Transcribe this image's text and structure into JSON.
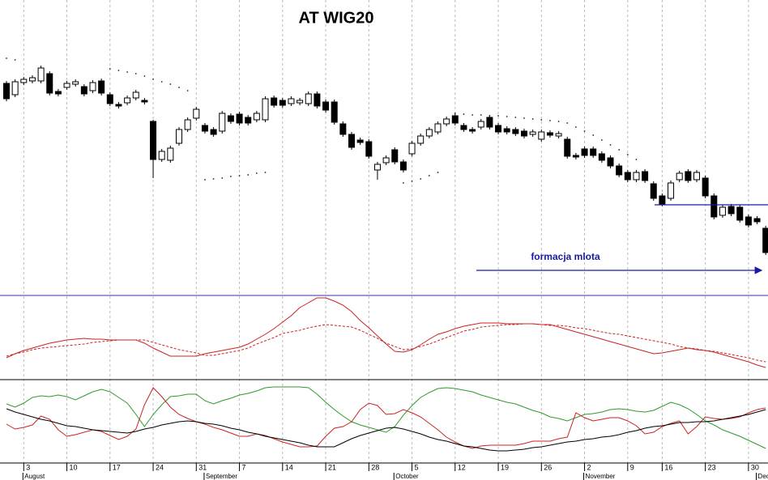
{
  "chart_data": [
    {
      "type": "candlestick",
      "title": "AT WIG20",
      "annotation": "formacja mlota",
      "ylim": [
        1770,
        2500
      ],
      "body_up_color": "#ffffff",
      "body_down_color": "#000000",
      "support_level": 1994,
      "support_color": "#1a1aa0",
      "open": [
        2294,
        2266,
        2296,
        2300,
        2300,
        2318,
        2274,
        2284,
        2292,
        2286,
        2276,
        2300,
        2266,
        2242,
        2246,
        2258,
        2252,
        2200,
        2106,
        2104,
        2146,
        2180,
        2208,
        2190,
        2180,
        2176,
        2214,
        2218,
        2210,
        2204,
        2204,
        2258,
        2252,
        2244,
        2246,
        2244,
        2268,
        2248,
        2248,
        2194,
        2168,
        2154,
        2150,
        2080,
        2098,
        2130,
        2100,
        2120,
        2146,
        2164,
        2174,
        2194,
        2214,
        2190,
        2180,
        2186,
        2210,
        2190,
        2182,
        2180,
        2176,
        2168,
        2156,
        2172,
        2164,
        2156,
        2116,
        2132,
        2132,
        2120,
        2110,
        2090,
        2074,
        2056,
        2076,
        2046,
        2016,
        2010,
        2056,
        2076,
        2056,
        2060,
        2016,
        1968,
        1990,
        1988,
        1964,
        1960,
        1936
      ],
      "high": [
        2300,
        2304,
        2310,
        2314,
        2338,
        2324,
        2280,
        2300,
        2304,
        2292,
        2302,
        2306,
        2272,
        2248,
        2264,
        2278,
        2258,
        2204,
        2132,
        2140,
        2186,
        2210,
        2236,
        2196,
        2186,
        2226,
        2220,
        2224,
        2216,
        2226,
        2262,
        2264,
        2258,
        2262,
        2258,
        2274,
        2274,
        2254,
        2254,
        2200,
        2174,
        2160,
        2156,
        2100,
        2116,
        2136,
        2106,
        2152,
        2170,
        2186,
        2200,
        2212,
        2220,
        2196,
        2186,
        2206,
        2216,
        2196,
        2188,
        2186,
        2182,
        2180,
        2180,
        2178,
        2176,
        2162,
        2122,
        2138,
        2138,
        2126,
        2116,
        2096,
        2080,
        2080,
        2082,
        2052,
        2022,
        2054,
        2078,
        2082,
        2080,
        2066,
        2022,
        1994,
        1996,
        1994,
        1970,
        1966,
        1942
      ],
      "low": [
        2250,
        2260,
        2290,
        2294,
        2294,
        2264,
        2262,
        2278,
        2286,
        2262,
        2270,
        2264,
        2238,
        2232,
        2240,
        2252,
        2242,
        2060,
        2100,
        2098,
        2140,
        2174,
        2202,
        2170,
        2162,
        2170,
        2194,
        2190,
        2190,
        2198,
        2198,
        2234,
        2234,
        2238,
        2240,
        2238,
        2232,
        2222,
        2192,
        2162,
        2130,
        2142,
        2108,
        2056,
        2092,
        2094,
        2074,
        2114,
        2140,
        2158,
        2168,
        2188,
        2190,
        2174,
        2170,
        2180,
        2180,
        2168,
        2168,
        2164,
        2158,
        2162,
        2150,
        2160,
        2158,
        2108,
        2106,
        2110,
        2110,
        2098,
        2084,
        2062,
        2050,
        2050,
        2048,
        2004,
        1990,
        2004,
        2050,
        2048,
        2050,
        2010,
        1958,
        1962,
        1966,
        1950,
        1938,
        1946,
        1870
      ],
      "close": [
        2256,
        2298,
        2304,
        2308,
        2332,
        2270,
        2268,
        2294,
        2298,
        2268,
        2296,
        2270,
        2244,
        2238,
        2258,
        2272,
        2248,
        2106,
        2126,
        2134,
        2180,
        2204,
        2230,
        2176,
        2168,
        2220,
        2200,
        2196,
        2196,
        2220,
        2256,
        2240,
        2240,
        2256,
        2252,
        2268,
        2238,
        2228,
        2198,
        2168,
        2136,
        2148,
        2114,
        2094,
        2110,
        2100,
        2080,
        2146,
        2164,
        2180,
        2194,
        2206,
        2196,
        2180,
        2176,
        2200,
        2186,
        2174,
        2174,
        2170,
        2164,
        2174,
        2174,
        2166,
        2170,
        2114,
        2112,
        2116,
        2116,
        2104,
        2090,
        2068,
        2056,
        2074,
        2054,
        2010,
        1996,
        2048,
        2072,
        2054,
        2074,
        2016,
        1964,
        1988,
        1972,
        1956,
        1944,
        1952,
        1876
      ],
      "series": [
        {
          "color": "#222222",
          "style": "dotted",
          "values": [
            2356,
            2352,
            null,
            null,
            null,
            null,
            null,
            null,
            null,
            null,
            null,
            null,
            2330,
            2326,
            2322,
            2318,
            2312,
            2304,
            2298,
            2292,
            2284,
            2276,
            null,
            null,
            null,
            null,
            null,
            null,
            null,
            null,
            null,
            null,
            null,
            null,
            null,
            null,
            null,
            null,
            null,
            null,
            null,
            null,
            null,
            null,
            null,
            null,
            null,
            null,
            null,
            null,
            null,
            null,
            2220,
            2218,
            2216,
            2216,
            2214,
            2214,
            2212,
            2210,
            2208,
            2206,
            2204,
            2202,
            2200,
            2196,
            2186,
            2176,
            2166,
            2154,
            2142,
            2130,
            2118,
            2106,
            null,
            null,
            null,
            null,
            null,
            null,
            null,
            null,
            null,
            null,
            null,
            null,
            null,
            null,
            null
          ]
        },
        {
          "color": "#222222",
          "style": "dotted",
          "values": [
            null,
            null,
            null,
            null,
            null,
            null,
            null,
            null,
            null,
            null,
            null,
            null,
            null,
            null,
            null,
            null,
            null,
            null,
            null,
            null,
            null,
            null,
            null,
            2056,
            2058,
            2060,
            2064,
            2066,
            2068,
            2072,
            2074,
            null,
            null,
            null,
            null,
            null,
            null,
            null,
            null,
            null,
            null,
            null,
            null,
            null,
            null,
            null,
            2048,
            2052,
            2058,
            2066,
            2074,
            null,
            null,
            null,
            null,
            null,
            null,
            null,
            null,
            null,
            null,
            null,
            null,
            null,
            null,
            null,
            null,
            null,
            null,
            null,
            null,
            null,
            null,
            null,
            null,
            null,
            null,
            null,
            null,
            null,
            null,
            null,
            null,
            null,
            null,
            null,
            null,
            null,
            null
          ]
        }
      ]
    },
    {
      "type": "line",
      "ylim": [
        0,
        102
      ],
      "border_color": "#3333aa",
      "series": [
        {
          "color": "#cc2222",
          "style": "solid",
          "values": [
            26,
            31,
            35,
            38,
            41,
            44,
            46,
            48,
            49,
            50,
            49,
            49,
            48,
            48,
            48,
            48,
            44,
            38,
            33,
            28,
            28,
            28,
            28,
            31,
            33,
            35,
            37,
            39,
            43,
            49,
            55,
            62,
            70,
            78,
            88,
            94,
            100,
            100,
            96,
            91,
            83,
            72,
            63,
            53,
            43,
            34,
            33,
            36,
            42,
            49,
            55,
            58,
            62,
            65,
            67,
            69,
            69,
            69,
            68,
            68,
            68,
            68,
            67,
            67,
            64,
            61,
            58,
            55,
            52,
            49,
            46,
            43,
            40,
            37,
            34,
            31,
            32,
            34,
            36,
            38,
            36,
            35,
            33,
            30,
            27,
            24,
            21,
            17,
            14
          ]
        },
        {
          "color": "#cc2222",
          "style": "dashed",
          "values": [
            28,
            31,
            33,
            36,
            38,
            39,
            40,
            41,
            42,
            43,
            45,
            46,
            47,
            48,
            48,
            48,
            48,
            45,
            42,
            39,
            36,
            34,
            32,
            29,
            29,
            31,
            33,
            35,
            38,
            43,
            47,
            51,
            56,
            58,
            60,
            63,
            65,
            67,
            66,
            65,
            64,
            60,
            55,
            50,
            44,
            40,
            36,
            37,
            40,
            43,
            47,
            51,
            55,
            59,
            61,
            64,
            65,
            66,
            67,
            67,
            68,
            68,
            67,
            66,
            66,
            65,
            63,
            62,
            60,
            58,
            56,
            55,
            53,
            51,
            49,
            47,
            45,
            43,
            40,
            38,
            37,
            35,
            34,
            32,
            30,
            28,
            26,
            23,
            21
          ]
        }
      ]
    },
    {
      "type": "line",
      "ylim": [
        0,
        100
      ],
      "border_color": "#000000",
      "categories": [
        null,
        null,
        "3",
        null,
        null,
        null,
        null,
        "10",
        null,
        null,
        null,
        null,
        "17",
        null,
        null,
        null,
        null,
        "24",
        null,
        null,
        null,
        null,
        "31",
        null,
        null,
        null,
        null,
        "7",
        null,
        null,
        null,
        null,
        "14",
        null,
        null,
        null,
        null,
        "21",
        null,
        null,
        null,
        null,
        "28",
        null,
        null,
        null,
        null,
        "5",
        null,
        null,
        null,
        null,
        "12",
        null,
        null,
        null,
        null,
        "19",
        null,
        null,
        null,
        null,
        "26",
        null,
        null,
        null,
        null,
        "2",
        null,
        null,
        null,
        null,
        "9",
        null,
        null,
        null,
        "16",
        null,
        null,
        null,
        null,
        "23",
        null,
        null,
        null,
        null,
        "30",
        null,
        null
      ],
      "month_labels": [
        null,
        null,
        "August",
        null,
        null,
        null,
        null,
        null,
        null,
        null,
        null,
        null,
        null,
        null,
        null,
        null,
        null,
        null,
        null,
        null,
        null,
        null,
        null,
        "September",
        null,
        null,
        null,
        null,
        null,
        null,
        null,
        null,
        null,
        null,
        null,
        null,
        null,
        null,
        null,
        null,
        null,
        null,
        null,
        null,
        null,
        "October",
        null,
        null,
        null,
        null,
        null,
        null,
        null,
        null,
        null,
        null,
        null,
        null,
        null,
        null,
        null,
        null,
        null,
        null,
        null,
        null,
        null,
        "November",
        null,
        null,
        null,
        null,
        null,
        null,
        null,
        null,
        null,
        null,
        null,
        null,
        null,
        null,
        null,
        null,
        null,
        null,
        null,
        "December",
        null
      ],
      "grid": true,
      "series": [
        {
          "color": "#2e9a2e",
          "style": "solid",
          "values": [
            71,
            67,
            72,
            79,
            81,
            80,
            82,
            80,
            76,
            81,
            86,
            89,
            86,
            79,
            72,
            58,
            43,
            58,
            70,
            80,
            81,
            83,
            83,
            75,
            71,
            75,
            78,
            82,
            84,
            87,
            91,
            92,
            92,
            92,
            92,
            91,
            83,
            73,
            64,
            56,
            49,
            45,
            42,
            39,
            36,
            43,
            57,
            69,
            79,
            85,
            90,
            91,
            90,
            88,
            86,
            82,
            79,
            76,
            73,
            71,
            67,
            63,
            60,
            55,
            53,
            50,
            54,
            58,
            59,
            61,
            64,
            65,
            64,
            62,
            61,
            63,
            68,
            73,
            70,
            65,
            58,
            50,
            45,
            39,
            35,
            31,
            26,
            21,
            16
          ]
        },
        {
          "color": "#cc2222",
          "style": "solid",
          "values": [
            46,
            40,
            42,
            45,
            56,
            52,
            39,
            31,
            33,
            36,
            39,
            37,
            32,
            27,
            31,
            40,
            70,
            91,
            80,
            67,
            58,
            53,
            49,
            46,
            42,
            39,
            35,
            31,
            31,
            34,
            32,
            28,
            24,
            21,
            18,
            18,
            19,
            31,
            41,
            43,
            49,
            64,
            72,
            69,
            58,
            59,
            64,
            60,
            55,
            47,
            39,
            30,
            24,
            19,
            16,
            19,
            20,
            20,
            20,
            20,
            22,
            25,
            25,
            25,
            28,
            30,
            60,
            54,
            50,
            52,
            54,
            54,
            50,
            44,
            34,
            36,
            43,
            47,
            50,
            34,
            43,
            55,
            53,
            52,
            53,
            55,
            60,
            64,
            66
          ]
        },
        {
          "color": "#000000",
          "style": "solid",
          "values": [
            65,
            61,
            58,
            55,
            52,
            50,
            47,
            44,
            43,
            41,
            39,
            38,
            37,
            36,
            35,
            37,
            40,
            42,
            45,
            47,
            49,
            50,
            49,
            47,
            46,
            44,
            41,
            39,
            36,
            34,
            31,
            29,
            27,
            25,
            23,
            20,
            18,
            18,
            18,
            23,
            28,
            32,
            35,
            38,
            41,
            42,
            40,
            37,
            34,
            30,
            27,
            25,
            22,
            19,
            18,
            16,
            14,
            13,
            13,
            14,
            15,
            17,
            18,
            20,
            22,
            24,
            25,
            27,
            28,
            30,
            31,
            33,
            36,
            38,
            41,
            43,
            44,
            46,
            48,
            48,
            49,
            49,
            50,
            52,
            54,
            56,
            58,
            61,
            64
          ]
        }
      ]
    }
  ]
}
